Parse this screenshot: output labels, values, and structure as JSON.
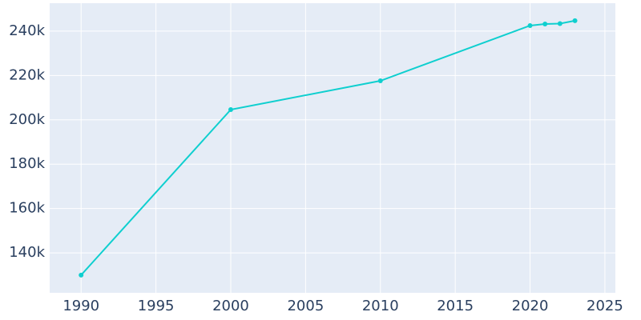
{
  "chart_data": {
    "type": "line",
    "x": [
      1990,
      2000,
      2010,
      2020,
      2021,
      2022,
      2023
    ],
    "series": [
      {
        "color": "#0fcfcf",
        "values": [
          130000,
          204600,
          217600,
          242500,
          243200,
          243400,
          244700
        ]
      }
    ],
    "xlim": [
      1987.9,
      2025.7
    ],
    "xticks": [
      1990,
      1995,
      2000,
      2005,
      2010,
      2015,
      2020,
      2025
    ],
    "ylim": [
      122000,
      252600
    ],
    "yticks": [
      {
        "value": 140000,
        "label": "140k"
      },
      {
        "value": 160000,
        "label": "160k"
      },
      {
        "value": 180000,
        "label": "180k"
      },
      {
        "value": 200000,
        "label": "200k"
      },
      {
        "value": 220000,
        "label": "220k"
      },
      {
        "value": 240000,
        "label": "240k"
      }
    ],
    "grid": true
  }
}
